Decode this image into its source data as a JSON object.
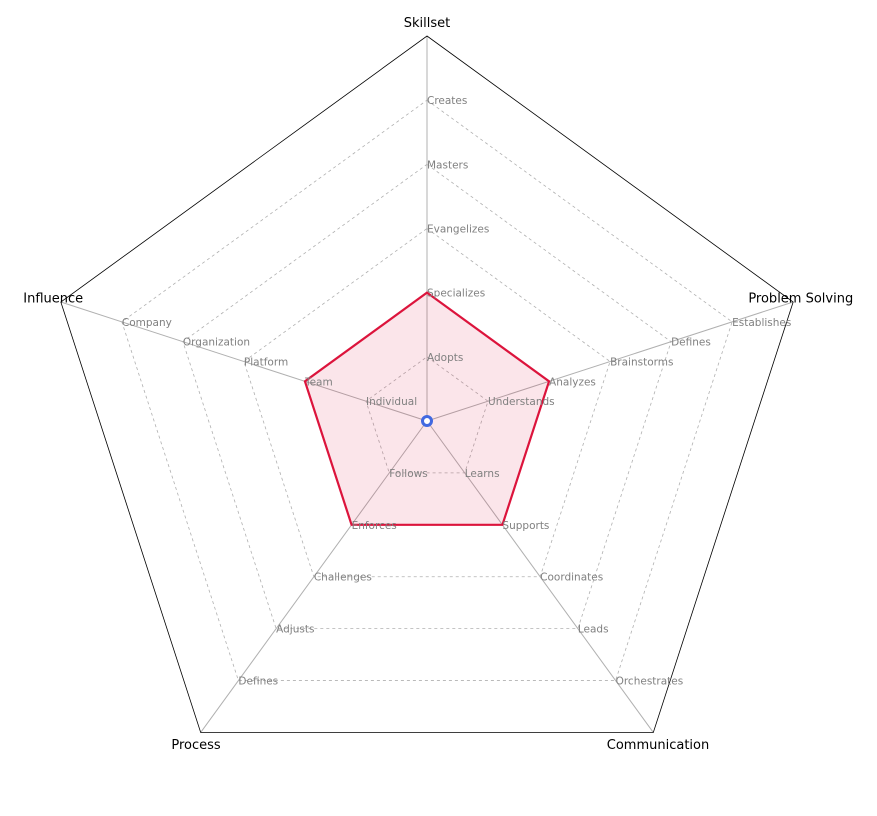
{
  "chart_data": {
    "type": "radar",
    "axes": [
      {
        "name": "Skillset",
        "levels": [
          "Adopts",
          "Specializes",
          "Evangelizes",
          "Masters",
          "Creates"
        ],
        "value": 2
      },
      {
        "name": "Problem Solving",
        "levels": [
          "Understands",
          "Analyzes",
          "Brainstorms",
          "Defines",
          "Establishes"
        ],
        "value": 2
      },
      {
        "name": "Communication",
        "levels": [
          "Learns",
          "Supports",
          "Coordinates",
          "Leads",
          "Orchestrates"
        ],
        "value": 2
      },
      {
        "name": "Process",
        "levels": [
          "Follows",
          "Enforces",
          "Challenges",
          "Adjusts",
          "Defines"
        ],
        "value": 2
      },
      {
        "name": "Influence",
        "levels": [
          "Individual",
          "Team",
          "Platform",
          "Organization",
          "Company"
        ],
        "value": 2
      }
    ],
    "rmax": 6,
    "grid": true,
    "colors": {
      "line": "#dc143c",
      "fill": "#dc143c",
      "fill_opacity": 0.11,
      "center_dot": "#4169e1",
      "grid": "#b0b0b0",
      "spoke": "#b0b0b0",
      "frame": "#000000",
      "label": "#808080"
    }
  }
}
